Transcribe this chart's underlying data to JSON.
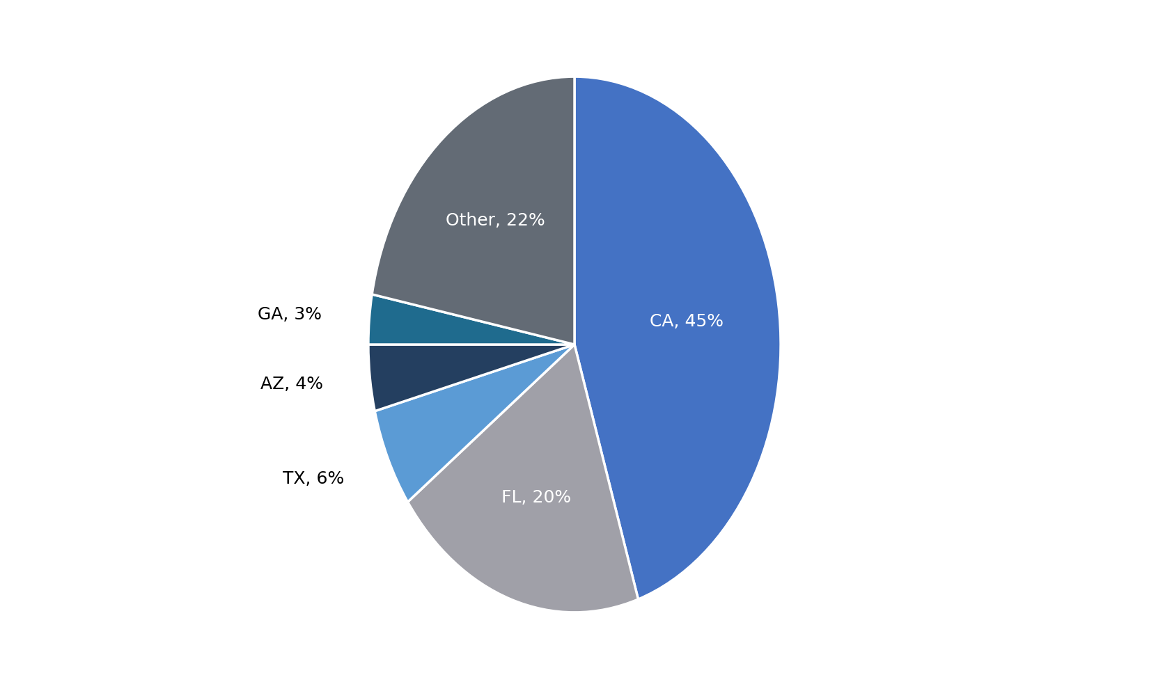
{
  "labels": [
    "CA",
    "FL",
    "TX",
    "AZ",
    "GA",
    "Other"
  ],
  "values": [
    45,
    20,
    6,
    4,
    3,
    22
  ],
  "colors": [
    "#4472C4",
    "#A0A0A8",
    "#5B9BD5",
    "#243F60",
    "#1F6B8E",
    "#636B75"
  ],
  "label_texts": [
    "CA, 45%",
    "FL, 20%",
    "TX, 6%",
    "AZ, 4%",
    "GA, 3%",
    "Other, 22%"
  ],
  "label_inside": [
    true,
    true,
    false,
    false,
    false,
    true
  ],
  "label_colors_inside": [
    "white",
    "white",
    "black",
    "black",
    "black",
    "white"
  ],
  "background_color": "#ffffff",
  "figsize": [
    16.5,
    9.9
  ],
  "dpi": 100,
  "startangle": 90,
  "label_fontsize": 18
}
